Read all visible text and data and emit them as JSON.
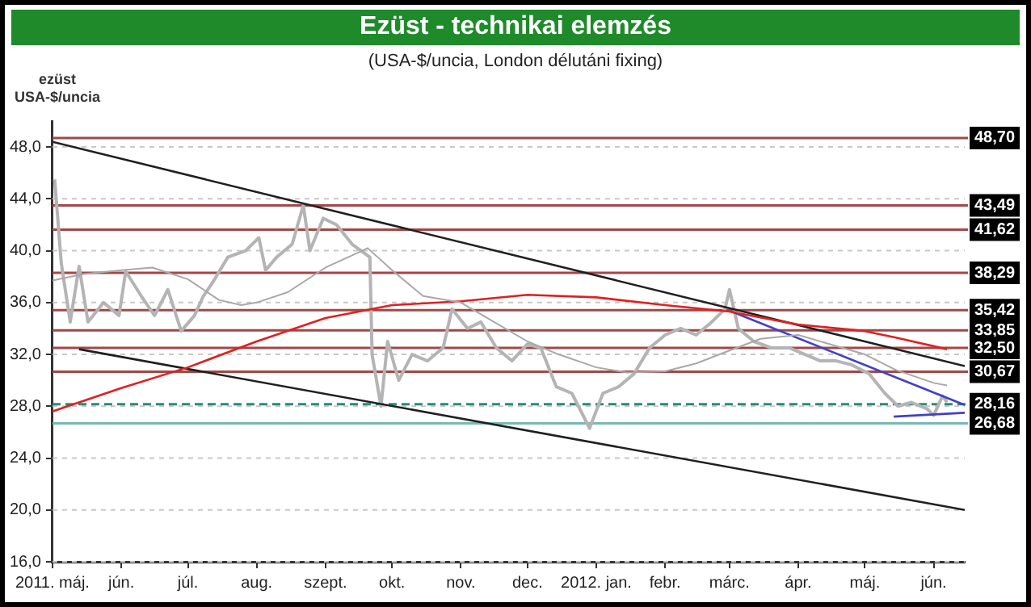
{
  "chart_data": {
    "type": "line",
    "title": "Ezüst - technikai elemzés",
    "subtitle": "(USA-$/uncia, London délutáni fixing)",
    "ylabel": "ezüst\nUSA-$/uncia",
    "xlim": [
      "2011-05-01",
      "2012-06-15"
    ],
    "xticks": [
      {
        "value": "2011-05-01",
        "label": "2011. máj."
      },
      {
        "value": "2011-06-01",
        "label": "jún."
      },
      {
        "value": "2011-07-01",
        "label": "júl."
      },
      {
        "value": "2011-08-01",
        "label": "aug."
      },
      {
        "value": "2011-09-01",
        "label": "szept."
      },
      {
        "value": "2011-10-01",
        "label": "okt."
      },
      {
        "value": "2011-11-01",
        "label": "nov."
      },
      {
        "value": "2011-12-01",
        "label": "dec."
      },
      {
        "value": "2012-01-01",
        "label": "2012. jan."
      },
      {
        "value": "2012-02-01",
        "label": "febr."
      },
      {
        "value": "2012-03-01",
        "label": "márc."
      },
      {
        "value": "2012-04-01",
        "label": "ápr."
      },
      {
        "value": "2012-05-01",
        "label": "máj."
      },
      {
        "value": "2012-06-01",
        "label": "jún."
      }
    ],
    "ylim": [
      16,
      50
    ],
    "yticks": [
      {
        "value": 16,
        "label": "16,0"
      },
      {
        "value": 20,
        "label": "20,0"
      },
      {
        "value": 24,
        "label": "24,0"
      },
      {
        "value": 28,
        "label": "28,0"
      },
      {
        "value": 32,
        "label": "32,0"
      },
      {
        "value": 36,
        "label": "36,0"
      },
      {
        "value": 40,
        "label": "40,0"
      },
      {
        "value": 44,
        "label": "44,0"
      },
      {
        "value": 48,
        "label": "48,0"
      }
    ],
    "grid": "y",
    "legend": false,
    "marker": "none",
    "series": [
      {
        "color": "#b4b4b4",
        "x": [
          "2011-05-02",
          "2011-05-05",
          "2011-05-09",
          "2011-05-13",
          "2011-05-17",
          "2011-05-24",
          "2011-05-31",
          "2011-06-03",
          "2011-06-10",
          "2011-06-16",
          "2011-06-22",
          "2011-06-28",
          "2011-07-04",
          "2011-07-08",
          "2011-07-12",
          "2011-07-19",
          "2011-07-27",
          "2011-08-02",
          "2011-08-05",
          "2011-08-10",
          "2011-08-17",
          "2011-08-22",
          "2011-08-25",
          "2011-08-31",
          "2011-09-06",
          "2011-09-13",
          "2011-09-21",
          "2011-09-22",
          "2011-09-26",
          "2011-09-29",
          "2011-10-04",
          "2011-10-10",
          "2011-10-17",
          "2011-10-24",
          "2011-10-28",
          "2011-11-04",
          "2011-11-10",
          "2011-11-17",
          "2011-11-24",
          "2011-12-01",
          "2011-12-07",
          "2011-12-14",
          "2011-12-21",
          "2011-12-29",
          "2012-01-04",
          "2012-01-11",
          "2012-01-18",
          "2012-01-25",
          "2012-02-01",
          "2012-02-08",
          "2012-02-15",
          "2012-02-22",
          "2012-02-28",
          "2012-03-01",
          "2012-03-05",
          "2012-03-12",
          "2012-03-20",
          "2012-03-28",
          "2012-04-04",
          "2012-04-11",
          "2012-04-18",
          "2012-04-25",
          "2012-05-03",
          "2012-05-10",
          "2012-05-16",
          "2012-05-22",
          "2012-05-29",
          "2012-06-01",
          "2012-06-05",
          "2012-06-07"
        ],
        "values": [
          45.5,
          39.0,
          34.5,
          38.8,
          34.5,
          36.0,
          35.0,
          38.4,
          36.5,
          35.0,
          37.0,
          33.8,
          35.0,
          36.5,
          37.5,
          39.5,
          40.0,
          41.0,
          38.5,
          39.5,
          40.5,
          43.5,
          40.0,
          42.5,
          42.0,
          40.5,
          39.5,
          32.0,
          28.0,
          33.0,
          30.0,
          32.0,
          31.5,
          32.5,
          35.5,
          34.0,
          34.5,
          32.5,
          31.5,
          32.8,
          32.5,
          29.5,
          29.0,
          26.3,
          29.0,
          29.5,
          30.5,
          32.5,
          33.5,
          34.0,
          33.5,
          34.5,
          35.5,
          37.0,
          34.0,
          33.0,
          32.5,
          32.5,
          32.0,
          31.5,
          31.5,
          31.2,
          30.5,
          29.0,
          28.0,
          28.3,
          27.8,
          27.3,
          28.8,
          28.3
        ]
      },
      {
        "color": "#a8a8a8",
        "x": [
          "2011-05-01",
          "2011-05-15",
          "2011-06-01",
          "2011-06-15",
          "2011-07-01",
          "2011-07-15",
          "2011-07-25",
          "2011-08-01",
          "2011-08-15",
          "2011-09-01",
          "2011-09-15",
          "2011-09-20",
          "2011-10-01",
          "2011-10-15",
          "2011-11-01",
          "2011-11-15",
          "2011-12-01",
          "2011-12-15",
          "2012-01-01",
          "2012-01-15",
          "2012-02-01",
          "2012-02-15",
          "2012-03-01",
          "2012-03-15",
          "2012-04-01",
          "2012-04-15",
          "2012-05-01",
          "2012-05-15",
          "2012-06-01",
          "2012-06-07"
        ],
        "values": [
          37.7,
          38.2,
          38.5,
          38.7,
          37.8,
          36.2,
          35.8,
          36.0,
          36.8,
          38.7,
          39.8,
          40.2,
          38.5,
          36.5,
          36.0,
          34.6,
          33.0,
          32.0,
          31.0,
          30.6,
          30.7,
          31.3,
          32.3,
          33.2,
          33.5,
          32.8,
          32.0,
          30.8,
          29.8,
          29.6
        ]
      },
      {
        "color": "#e02020",
        "x": [
          "2011-05-01",
          "2011-06-01",
          "2011-07-01",
          "2011-08-01",
          "2011-09-01",
          "2011-10-01",
          "2011-11-01",
          "2011-12-01",
          "2012-01-01",
          "2012-02-01",
          "2012-03-01",
          "2012-04-01",
          "2012-05-01",
          "2012-05-15",
          "2012-06-07"
        ],
        "values": [
          27.6,
          29.4,
          31.0,
          33.0,
          34.8,
          35.8,
          36.1,
          36.6,
          36.4,
          35.8,
          35.3,
          34.3,
          33.8,
          33.3,
          32.4
        ]
      },
      {
        "color": "#202020",
        "x": [
          "2011-05-01",
          "2012-06-15"
        ],
        "values": [
          48.4,
          31.1
        ]
      },
      {
        "color": "#202020",
        "x": [
          "2011-05-13",
          "2012-06-15"
        ],
        "values": [
          32.4,
          20.0
        ]
      },
      {
        "color": "#4040c8",
        "x": [
          "2012-03-02",
          "2012-06-15"
        ],
        "values": [
          35.3,
          28.1
        ]
      },
      {
        "color": "#4040c8",
        "x": [
          "2012-05-14",
          "2012-06-15"
        ],
        "values": [
          27.2,
          27.5
        ]
      }
    ],
    "ref_lines": [
      {
        "axis": "y",
        "value": 48.7,
        "label": "48,70",
        "color": "#a04848"
      },
      {
        "axis": "y",
        "value": 43.49,
        "label": "43,49",
        "color": "#a04848"
      },
      {
        "axis": "y",
        "value": 41.62,
        "label": "41,62",
        "color": "#a04848"
      },
      {
        "axis": "y",
        "value": 38.29,
        "label": "38,29",
        "color": "#a04848"
      },
      {
        "axis": "y",
        "value": 35.42,
        "label": "35,42",
        "color": "#a04848"
      },
      {
        "axis": "y",
        "value": 33.85,
        "label": "33,85",
        "color": "#a04848"
      },
      {
        "axis": "y",
        "value": 32.5,
        "label": "32,50",
        "color": "#a04848"
      },
      {
        "axis": "y",
        "value": 30.67,
        "label": "30,67",
        "color": "#a04848"
      },
      {
        "axis": "y",
        "value": 28.16,
        "label": "28,16",
        "color": "#2a8a7a",
        "line_style": "dashed"
      },
      {
        "axis": "y",
        "value": 26.68,
        "label": "26,68",
        "color": "#78b8b8"
      }
    ]
  }
}
